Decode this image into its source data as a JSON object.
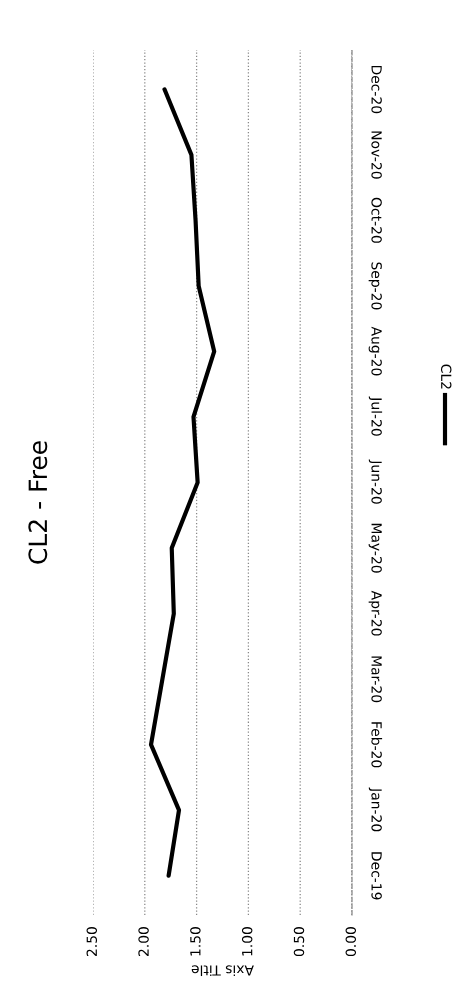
{
  "chart_data": {
    "type": "line",
    "orientation": "horizontal",
    "title": "CL2 - Free",
    "xlabel": "Axis Title",
    "categories": [
      "Dec-20",
      "Nov-20",
      "Oct-20",
      "Sep-20",
      "Aug-20",
      "Jul-20",
      "Jun-20",
      "May-20",
      "Apr-20",
      "Mar-20",
      "Feb-20",
      "Jan-20",
      "Dec-19"
    ],
    "series": [
      {
        "name": "CL2",
        "color": "#000000",
        "values": [
          1.81,
          1.55,
          1.51,
          1.48,
          1.33,
          1.53,
          1.49,
          1.74,
          1.72,
          1.83,
          1.94,
          1.67,
          1.77
        ]
      }
    ],
    "xlim": [
      2.5,
      0
    ],
    "xticks": [
      {
        "value": 2.5,
        "label": "2.50"
      },
      {
        "value": 2.0,
        "label": "2.00"
      },
      {
        "value": 1.5,
        "label": "1.50"
      },
      {
        "value": 1.0,
        "label": "1.00"
      },
      {
        "value": 0.5,
        "label": "0.50"
      },
      {
        "value": 0,
        "label": "0.00"
      }
    ],
    "grid": "x",
    "legend": "right",
    "marker": "none",
    "line_style": "solid"
  }
}
